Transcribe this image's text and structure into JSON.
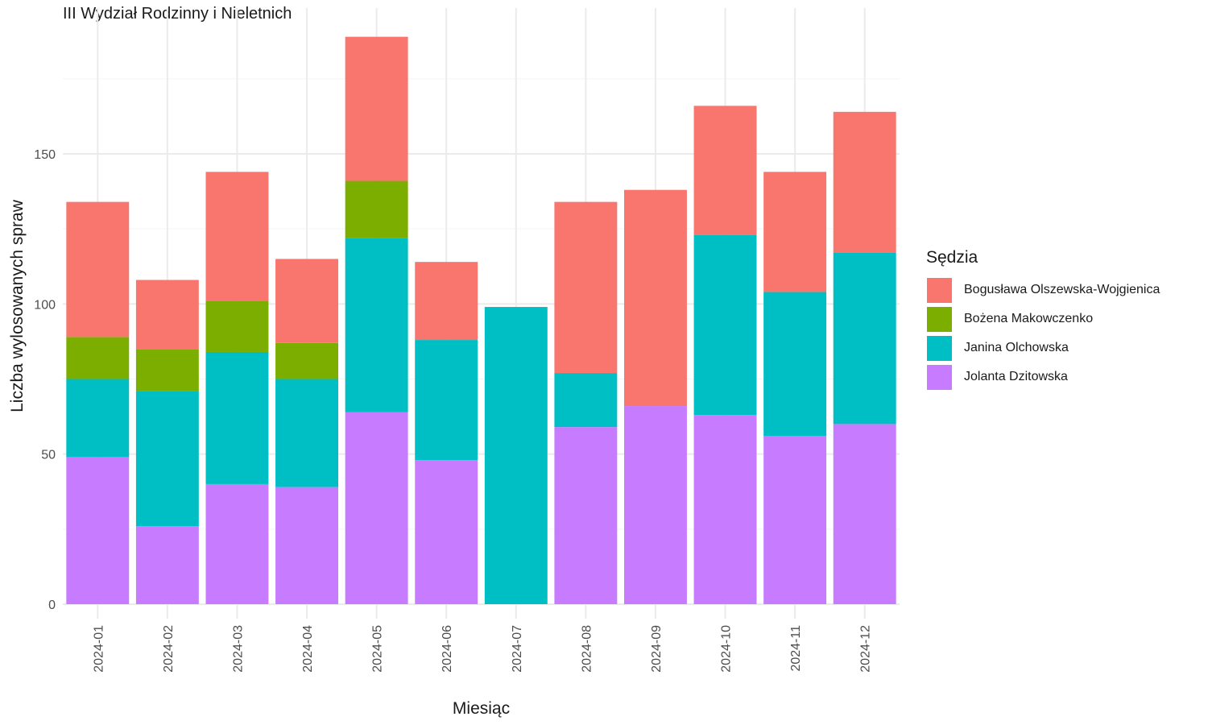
{
  "chart_data": {
    "type": "bar",
    "stacked": true,
    "title": "III Wydział Rodzinny i Nieletnich",
    "xlabel": "Miesiąc",
    "ylabel": "Liczba wylosowanych spraw",
    "ylim": [
      0,
      195
    ],
    "yticks": [
      0,
      50,
      100,
      150
    ],
    "grid": true,
    "legend_position": "right",
    "legend_title": "Sędzia",
    "categories": [
      "2024-01",
      "2024-02",
      "2024-03",
      "2024-04",
      "2024-05",
      "2024-06",
      "2024-07",
      "2024-08",
      "2024-09",
      "2024-10",
      "2024-11",
      "2024-12"
    ],
    "series": [
      {
        "name": "Jolanta Dzitowska",
        "color": "#C77CFF",
        "values": [
          49,
          26,
          40,
          39,
          64,
          48,
          0,
          59,
          66,
          63,
          56,
          60
        ]
      },
      {
        "name": "Janina Olchowska",
        "color": "#00BFC4",
        "values": [
          26,
          45,
          44,
          36,
          58,
          40,
          99,
          18,
          0,
          60,
          48,
          57
        ]
      },
      {
        "name": "Bożena Makowczenko",
        "color": "#7CAE00",
        "values": [
          14,
          14,
          17,
          12,
          19,
          0,
          0,
          0,
          0,
          0,
          0,
          0
        ]
      },
      {
        "name": "Bogusława Olszewska-Wojgienica",
        "color": "#F8766D",
        "values": [
          45,
          23,
          43,
          28,
          48,
          26,
          0,
          57,
          72,
          43,
          40,
          47
        ]
      }
    ],
    "legend_order": [
      "Bogusława Olszewska-Wojgienica",
      "Bożena Makowczenko",
      "Janina Olchowska",
      "Jolanta Dzitowska"
    ]
  }
}
